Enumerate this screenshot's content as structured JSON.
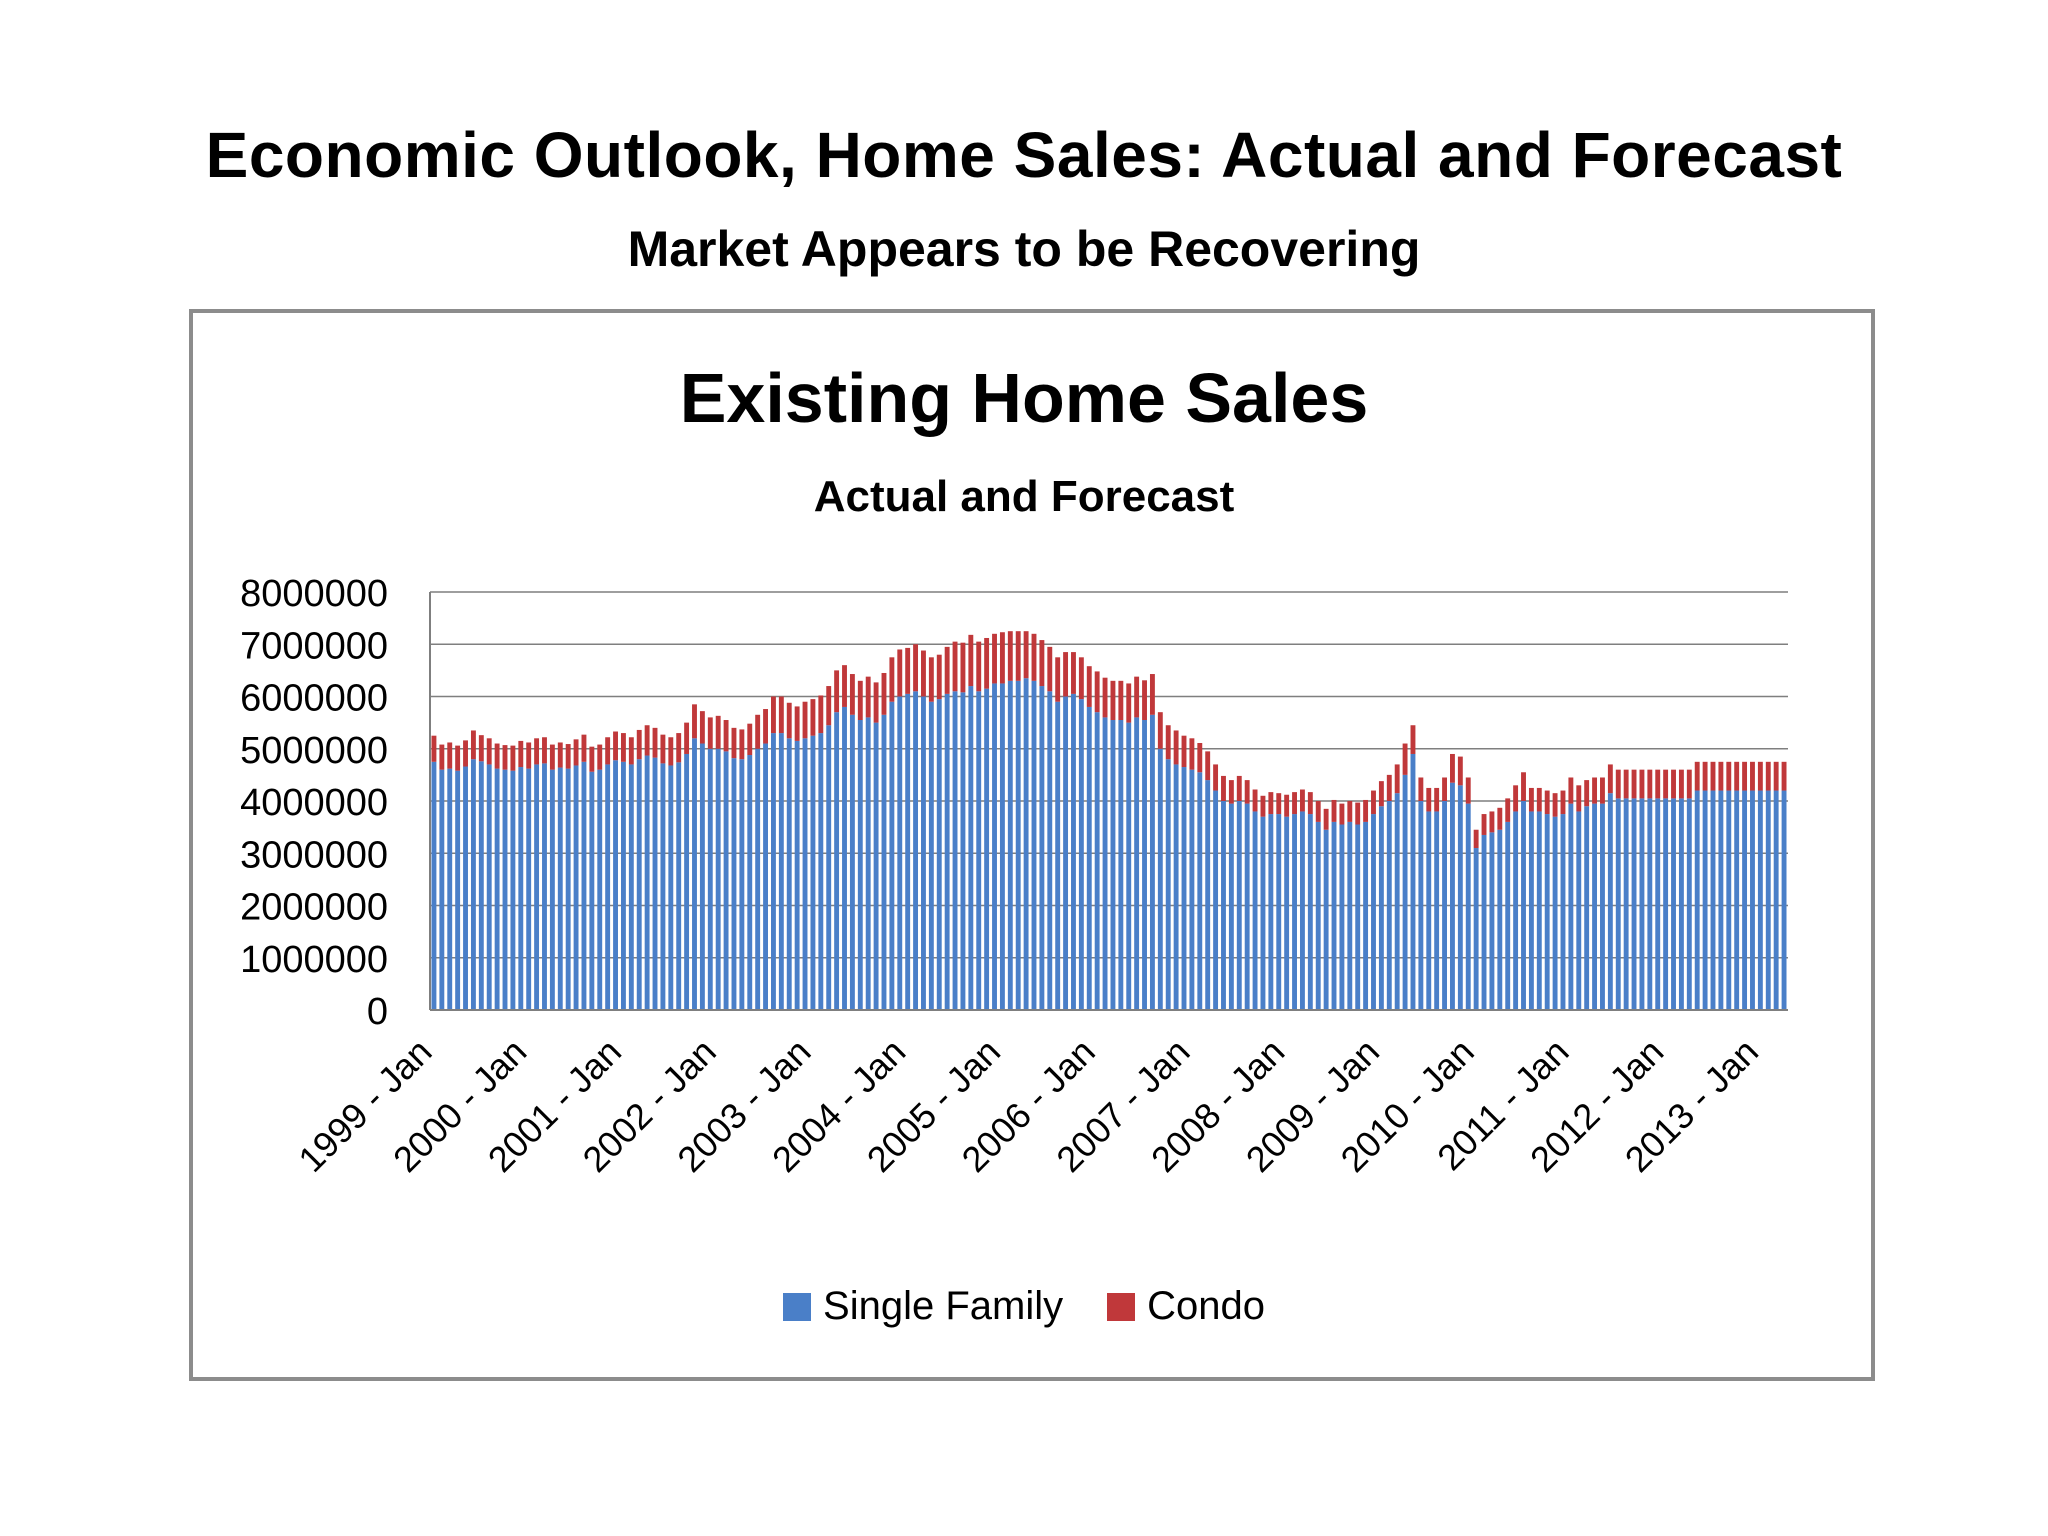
{
  "slide": {
    "title": "Economic Outlook, Home Sales:  Actual and Forecast",
    "subtitle": "Market Appears to be Recovering"
  },
  "chart_data": {
    "type": "bar",
    "stacked": true,
    "title": "Existing Home Sales",
    "subtitle": "Actual and Forecast",
    "xlabel": "",
    "ylabel": "",
    "ylim": [
      0,
      8000000
    ],
    "y_ticks": [
      "0",
      "1000000",
      "2000000",
      "3000000",
      "4000000",
      "5000000",
      "6000000",
      "7000000",
      "8000000"
    ],
    "grid": true,
    "legend": "bottom",
    "frequency": "monthly",
    "period_start": "1999 - Jan",
    "period_end": "2013 - Dec",
    "x_tick_labels": [
      "1999 - Jan",
      "2000 - Jan",
      "2001 - Jan",
      "2002 - Jan",
      "2003 - Jan",
      "2004 - Jan",
      "2005 - Jan",
      "2006 - Jan",
      "2007 - Jan",
      "2008 - Jan",
      "2009 - Jan",
      "2010 - Jan",
      "2011 - Jan",
      "2012 - Jan",
      "2013 - Jan"
    ],
    "series": [
      {
        "name": "Single Family",
        "color": "#4a7fc8",
        "values": [
          4750000,
          4600000,
          4620000,
          4580000,
          4660000,
          4800000,
          4760000,
          4700000,
          4620000,
          4600000,
          4580000,
          4650000,
          4620000,
          4700000,
          4720000,
          4600000,
          4640000,
          4620000,
          4680000,
          4750000,
          4560000,
          4600000,
          4700000,
          4780000,
          4750000,
          4700000,
          4800000,
          4870000,
          4830000,
          4720000,
          4680000,
          4740000,
          4900000,
          5200000,
          5100000,
          5000000,
          5000000,
          4950000,
          4820000,
          4800000,
          4880000,
          5000000,
          5100000,
          5300000,
          5300000,
          5200000,
          5150000,
          5200000,
          5250000,
          5300000,
          5450000,
          5700000,
          5800000,
          5650000,
          5550000,
          5600000,
          5500000,
          5650000,
          5900000,
          6000000,
          6050000,
          6100000,
          6000000,
          5900000,
          5950000,
          6050000,
          6100000,
          6080000,
          6200000,
          6100000,
          6150000,
          6250000,
          6250000,
          6300000,
          6300000,
          6350000,
          6300000,
          6200000,
          6100000,
          5900000,
          6000000,
          6050000,
          5950000,
          5800000,
          5700000,
          5600000,
          5550000,
          5550000,
          5500000,
          5600000,
          5550000,
          5650000,
          5000000,
          4800000,
          4700000,
          4650000,
          4600000,
          4550000,
          4400000,
          4200000,
          4000000,
          3950000,
          4000000,
          3950000,
          3800000,
          3700000,
          3750000,
          3750000,
          3700000,
          3750000,
          3800000,
          3750000,
          3600000,
          3450000,
          3600000,
          3550000,
          3600000,
          3550000,
          3600000,
          3750000,
          3900000,
          4000000,
          4150000,
          4500000,
          4900000,
          4000000,
          3800000,
          3800000,
          4000000,
          4350000,
          4300000,
          3950000,
          3100000,
          3350000,
          3400000,
          3450000,
          3600000,
          3800000,
          4000000,
          3800000,
          3800000,
          3750000,
          3700000,
          3750000,
          3950000,
          3800000,
          3900000,
          3950000,
          3950000,
          4150000,
          4050000,
          4050000,
          4050000,
          4050000,
          4050000,
          4050000,
          4050000,
          4050000,
          4050000,
          4050000,
          4200000,
          4200000,
          4200000,
          4200000,
          4200000,
          4200000,
          4200000,
          4200000,
          4200000,
          4200000,
          4200000,
          4200000
        ]
      },
      {
        "name": "Condo",
        "color": "#c0383a",
        "values": [
          500000,
          480000,
          500000,
          480000,
          500000,
          550000,
          500000,
          500000,
          480000,
          470000,
          480000,
          500000,
          500000,
          500000,
          500000,
          480000,
          480000,
          470000,
          500000,
          520000,
          480000,
          480000,
          520000,
          550000,
          550000,
          520000,
          560000,
          580000,
          570000,
          550000,
          540000,
          560000,
          600000,
          650000,
          620000,
          600000,
          630000,
          600000,
          580000,
          570000,
          600000,
          650000,
          660000,
          700000,
          700000,
          680000,
          660000,
          700000,
          700000,
          720000,
          750000,
          800000,
          800000,
          780000,
          750000,
          780000,
          770000,
          800000,
          850000,
          900000,
          880000,
          900000,
          880000,
          850000,
          850000,
          900000,
          950000,
          950000,
          980000,
          950000,
          970000,
          950000,
          980000,
          950000,
          950000,
          900000,
          900000,
          880000,
          850000,
          850000,
          850000,
          800000,
          800000,
          780000,
          780000,
          760000,
          750000,
          750000,
          750000,
          780000,
          760000,
          780000,
          700000,
          650000,
          650000,
          600000,
          600000,
          560000,
          550000,
          500000,
          480000,
          450000,
          480000,
          450000,
          420000,
          400000,
          420000,
          400000,
          420000,
          420000,
          420000,
          420000,
          400000,
          400000,
          420000,
          400000,
          400000,
          420000,
          420000,
          450000,
          480000,
          500000,
          550000,
          600000,
          550000,
          450000,
          450000,
          450000,
          450000,
          550000,
          550000,
          500000,
          350000,
          400000,
          400000,
          420000,
          450000,
          500000,
          550000,
          450000,
          450000,
          450000,
          450000,
          450000,
          500000,
          500000,
          500000,
          500000,
          500000,
          550000,
          550000,
          550000,
          550000,
          550000,
          550000,
          550000,
          550000,
          550000,
          550000,
          550000,
          550000,
          550000,
          550000,
          550000,
          550000,
          550000,
          550000,
          550000,
          550000,
          550000,
          550000,
          550000
        ]
      }
    ]
  }
}
